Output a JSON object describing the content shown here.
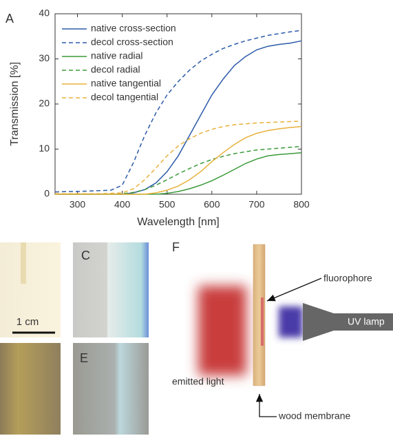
{
  "chart_data": {
    "type": "line",
    "panel_label": "A",
    "x_label": "Wavelength [nm]",
    "y_label": "Transmission [%]",
    "x": [
      250,
      275,
      300,
      325,
      350,
      375,
      400,
      425,
      450,
      475,
      500,
      525,
      550,
      575,
      600,
      625,
      650,
      675,
      700,
      725,
      750,
      775,
      800
    ],
    "series": [
      {
        "name": "native cross-section",
        "color": "#2b5aa8",
        "style": "solid",
        "values": [
          0,
          0,
          0,
          0,
          0,
          0,
          0,
          0.3,
          1,
          2.5,
          5,
          8.5,
          13,
          17.5,
          22,
          25.5,
          28.5,
          30.5,
          32,
          32.8,
          33.2,
          33.5,
          34
        ]
      },
      {
        "name": "decol cross-section",
        "color": "#2b5aa8",
        "style": "dashed",
        "values": [
          0.5,
          0.6,
          0.6,
          0.7,
          0.8,
          0.9,
          2,
          7,
          13,
          18,
          22,
          25,
          27.5,
          29.5,
          31,
          32.3,
          33.2,
          34,
          34.6,
          35.2,
          35.6,
          36,
          36.3
        ]
      },
      {
        "name": "native radial",
        "color": "#3a9a3a",
        "style": "solid",
        "values": [
          0,
          0,
          0,
          0,
          0,
          0,
          0,
          0,
          0,
          0,
          0.2,
          0.6,
          1.2,
          2,
          3,
          4.2,
          5.5,
          6.8,
          7.8,
          8.5,
          8.8,
          9,
          9.2
        ]
      },
      {
        "name": "decol radial",
        "color": "#3a9a3a",
        "style": "dashed",
        "values": [
          0,
          0,
          0,
          0,
          0,
          0,
          0.1,
          0.4,
          1,
          2,
          3.2,
          4.5,
          5.7,
          6.8,
          7.7,
          8.4,
          9,
          9.4,
          9.8,
          10,
          10.2,
          10.4,
          10.6
        ]
      },
      {
        "name": "native tangential",
        "color": "#e8b03a",
        "style": "solid",
        "values": [
          0,
          0,
          0,
          0,
          0,
          0,
          0,
          0,
          0,
          0.3,
          0.9,
          1.8,
          3.2,
          5,
          7.2,
          9.2,
          11,
          12.5,
          13.5,
          14.1,
          14.5,
          14.8,
          15
        ]
      },
      {
        "name": "decol tangential",
        "color": "#e8b03a",
        "style": "dashed",
        "values": [
          0.1,
          0.1,
          0.1,
          0.1,
          0.1,
          0.2,
          0.3,
          1.2,
          3.2,
          5.8,
          8.5,
          10.7,
          12.3,
          13.5,
          14.4,
          15,
          15.4,
          15.6,
          15.8,
          15.9,
          16,
          16.1,
          16.2
        ]
      }
    ],
    "xlim": [
      250,
      800
    ],
    "xticks": [
      300,
      400,
      500,
      600,
      700,
      800
    ],
    "ylim": [
      0,
      40
    ],
    "yticks": [
      0,
      10,
      20,
      30,
      40
    ],
    "legend": "upper-left"
  },
  "photos": {
    "labels": [
      "C",
      "E"
    ],
    "scale_bar": "1 cm"
  },
  "diagram": {
    "panel_label": "F",
    "fluorophore": "fluorophore",
    "emitted_light": "emitted light",
    "wood_membrane": "wood membrane",
    "lamp": "UV lamp"
  }
}
